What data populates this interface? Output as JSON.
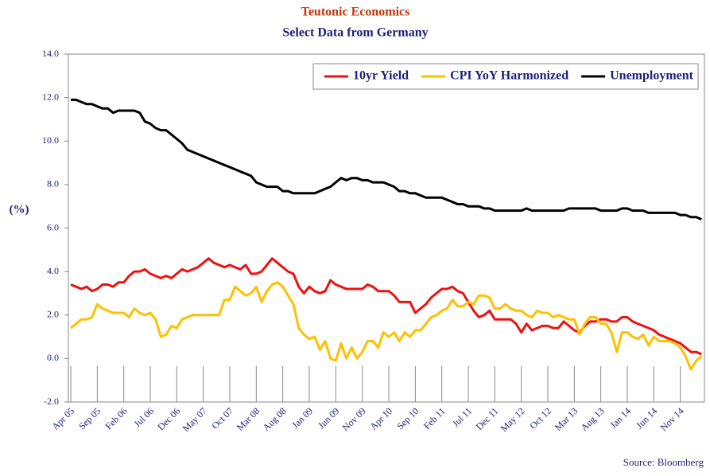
{
  "chart_data": {
    "type": "line",
    "title": "Teutonic Economics",
    "subtitle": "Select Data from Germany",
    "y_label": "(%)",
    "source": "Source: Bloomberg",
    "categories": [
      "Apr 05",
      null,
      null,
      null,
      null,
      "Sep 05",
      null,
      null,
      null,
      null,
      "Feb 06",
      null,
      null,
      null,
      null,
      "Jul 06",
      null,
      null,
      null,
      null,
      "Dec 06",
      null,
      null,
      null,
      null,
      "May 07",
      null,
      null,
      null,
      null,
      "Oct 07",
      null,
      null,
      null,
      null,
      "Mar 08",
      null,
      null,
      null,
      null,
      "Aug 08",
      null,
      null,
      null,
      null,
      "Jan 09",
      null,
      null,
      null,
      null,
      "Jun 09",
      null,
      null,
      null,
      null,
      "Nov 09",
      null,
      null,
      null,
      null,
      "Apr 10",
      null,
      null,
      null,
      null,
      "Sep 10",
      null,
      null,
      null,
      null,
      "Feb 11",
      null,
      null,
      null,
      null,
      "Jul 11",
      null,
      null,
      null,
      null,
      "Dec 11",
      null,
      null,
      null,
      null,
      "May 12",
      null,
      null,
      null,
      null,
      "Oct 12",
      null,
      null,
      null,
      null,
      "Mar 13",
      null,
      null,
      null,
      null,
      "Aug 13",
      null,
      null,
      null,
      null,
      "Jan 14",
      null,
      null,
      null,
      null,
      "Jun 14",
      null,
      null,
      null,
      null,
      "Nov 14",
      null,
      null,
      null,
      null
    ],
    "series": [
      {
        "name": "10yr Yield",
        "color": "#ee1111",
        "values": [
          3.4,
          3.3,
          3.2,
          3.3,
          3.1,
          3.2,
          3.4,
          3.4,
          3.3,
          3.5,
          3.5,
          3.8,
          4.0,
          4.0,
          4.1,
          3.9,
          3.8,
          3.7,
          3.8,
          3.7,
          3.9,
          4.1,
          4.0,
          4.1,
          4.2,
          4.4,
          4.6,
          4.4,
          4.3,
          4.2,
          4.3,
          4.2,
          4.1,
          4.3,
          3.9,
          3.9,
          4.0,
          4.3,
          4.6,
          4.4,
          4.2,
          4.0,
          3.9,
          3.3,
          3.0,
          3.3,
          3.1,
          3.0,
          3.1,
          3.6,
          3.4,
          3.3,
          3.2,
          3.2,
          3.2,
          3.2,
          3.4,
          3.3,
          3.1,
          3.1,
          3.1,
          2.9,
          2.6,
          2.6,
          2.6,
          2.1,
          2.3,
          2.5,
          2.8,
          3.0,
          3.2,
          3.2,
          3.3,
          3.1,
          3.0,
          2.6,
          2.2,
          1.9,
          2.0,
          2.2,
          1.8,
          1.8,
          1.8,
          1.8,
          1.6,
          1.2,
          1.6,
          1.3,
          1.4,
          1.5,
          1.5,
          1.4,
          1.4,
          1.7,
          1.5,
          1.3,
          1.2,
          1.5,
          1.7,
          1.7,
          1.8,
          1.8,
          1.7,
          1.7,
          1.9,
          1.9,
          1.7,
          1.6,
          1.5,
          1.4,
          1.3,
          1.1,
          1.0,
          0.9,
          0.8,
          0.7,
          0.5,
          0.3,
          0.3,
          0.2
        ]
      },
      {
        "name": "CPI YoY Harmonized",
        "color": "#ffc000",
        "values": [
          1.4,
          1.6,
          1.8,
          1.8,
          1.9,
          2.5,
          2.3,
          2.2,
          2.1,
          2.1,
          2.1,
          1.9,
          2.3,
          2.1,
          2.0,
          2.1,
          1.8,
          1.0,
          1.1,
          1.5,
          1.4,
          1.8,
          1.9,
          2.0,
          2.0,
          2.0,
          2.0,
          2.0,
          2.0,
          2.7,
          2.7,
          3.3,
          3.1,
          2.9,
          3.0,
          3.3,
          2.6,
          3.1,
          3.4,
          3.5,
          3.3,
          2.9,
          2.5,
          1.4,
          1.1,
          0.9,
          1.0,
          0.4,
          0.8,
          0.0,
          -0.1,
          0.7,
          0.0,
          0.5,
          0.0,
          0.3,
          0.8,
          0.8,
          0.5,
          1.2,
          1.0,
          1.2,
          0.8,
          1.2,
          1.0,
          1.3,
          1.3,
          1.6,
          1.9,
          2.0,
          2.2,
          2.3,
          2.7,
          2.4,
          2.4,
          2.6,
          2.5,
          2.9,
          2.9,
          2.8,
          2.3,
          2.3,
          2.5,
          2.3,
          2.2,
          2.2,
          2.0,
          1.9,
          2.2,
          2.1,
          2.1,
          1.9,
          2.0,
          1.9,
          1.8,
          1.8,
          1.1,
          1.6,
          1.9,
          1.9,
          1.6,
          1.6,
          1.2,
          0.3,
          1.2,
          1.2,
          1.0,
          0.9,
          1.1,
          0.6,
          1.0,
          0.8,
          0.8,
          0.8,
          0.7,
          0.5,
          0.1,
          -0.5,
          -0.1,
          0.1
        ]
      },
      {
        "name": "Unemployment",
        "color": "#000000",
        "values": [
          11.9,
          11.9,
          11.8,
          11.7,
          11.7,
          11.6,
          11.5,
          11.5,
          11.3,
          11.4,
          11.4,
          11.4,
          11.4,
          11.3,
          10.9,
          10.8,
          10.6,
          10.5,
          10.5,
          10.3,
          10.1,
          9.9,
          9.6,
          9.5,
          9.4,
          9.3,
          9.2,
          9.1,
          9.0,
          8.9,
          8.8,
          8.7,
          8.6,
          8.5,
          8.4,
          8.1,
          8.0,
          7.9,
          7.9,
          7.9,
          7.7,
          7.7,
          7.6,
          7.6,
          7.6,
          7.6,
          7.6,
          7.7,
          7.8,
          7.9,
          8.1,
          8.3,
          8.2,
          8.3,
          8.3,
          8.2,
          8.2,
          8.1,
          8.1,
          8.1,
          8.0,
          7.9,
          7.7,
          7.7,
          7.6,
          7.6,
          7.5,
          7.4,
          7.4,
          7.4,
          7.4,
          7.3,
          7.2,
          7.1,
          7.1,
          7.0,
          7.0,
          7.0,
          6.9,
          6.9,
          6.8,
          6.8,
          6.8,
          6.8,
          6.8,
          6.8,
          6.9,
          6.8,
          6.8,
          6.8,
          6.8,
          6.8,
          6.8,
          6.8,
          6.9,
          6.9,
          6.9,
          6.9,
          6.9,
          6.9,
          6.8,
          6.8,
          6.8,
          6.8,
          6.9,
          6.9,
          6.8,
          6.8,
          6.8,
          6.7,
          6.7,
          6.7,
          6.7,
          6.7,
          6.7,
          6.6,
          6.6,
          6.5,
          6.5,
          6.4
        ]
      }
    ],
    "ylim": [
      -2,
      14
    ],
    "yticks": [
      {
        "value": -2,
        "label": "-2.0"
      },
      {
        "value": 0,
        "label": "0.0"
      },
      {
        "value": 2,
        "label": "2.0"
      },
      {
        "value": 4,
        "label": "4.0"
      },
      {
        "value": 6,
        "label": "6.0"
      },
      {
        "value": 8,
        "label": "8.0"
      },
      {
        "value": 10,
        "label": "10.0"
      },
      {
        "value": 12,
        "label": "12.0"
      },
      {
        "value": 14,
        "label": "14.0"
      }
    ],
    "legend": "upper right"
  }
}
